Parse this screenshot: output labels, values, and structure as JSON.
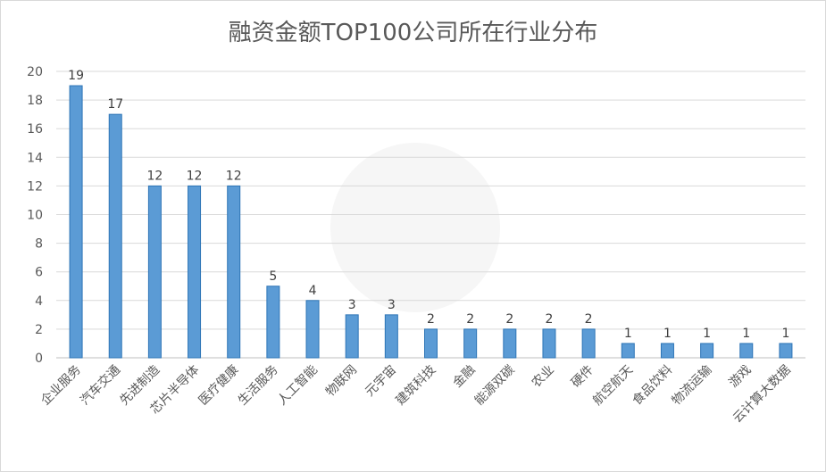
{
  "chart_data": {
    "type": "bar",
    "title": "融资金额TOP100公司所在行业分布",
    "xlabel": "",
    "ylabel": "",
    "ylim": [
      0,
      20
    ],
    "yticks": [
      0,
      2,
      4,
      6,
      8,
      10,
      12,
      14,
      16,
      18,
      20
    ],
    "grid": true,
    "legend": "none",
    "bar_color": "#5b9bd5",
    "categories": [
      "企业服务",
      "汽车交通",
      "先进制造",
      "芯片半导体",
      "医疗健康",
      "生活服务",
      "人工智能",
      "物联网",
      "元宇宙",
      "建筑科技",
      "金融",
      "能源双碳",
      "农业",
      "硬件",
      "航空航天",
      "食品饮料",
      "物流运输",
      "游戏",
      "云计算大数据"
    ],
    "values": [
      19,
      17,
      12,
      12,
      12,
      5,
      4,
      3,
      3,
      2,
      2,
      2,
      2,
      2,
      1,
      1,
      1,
      1,
      1
    ]
  }
}
